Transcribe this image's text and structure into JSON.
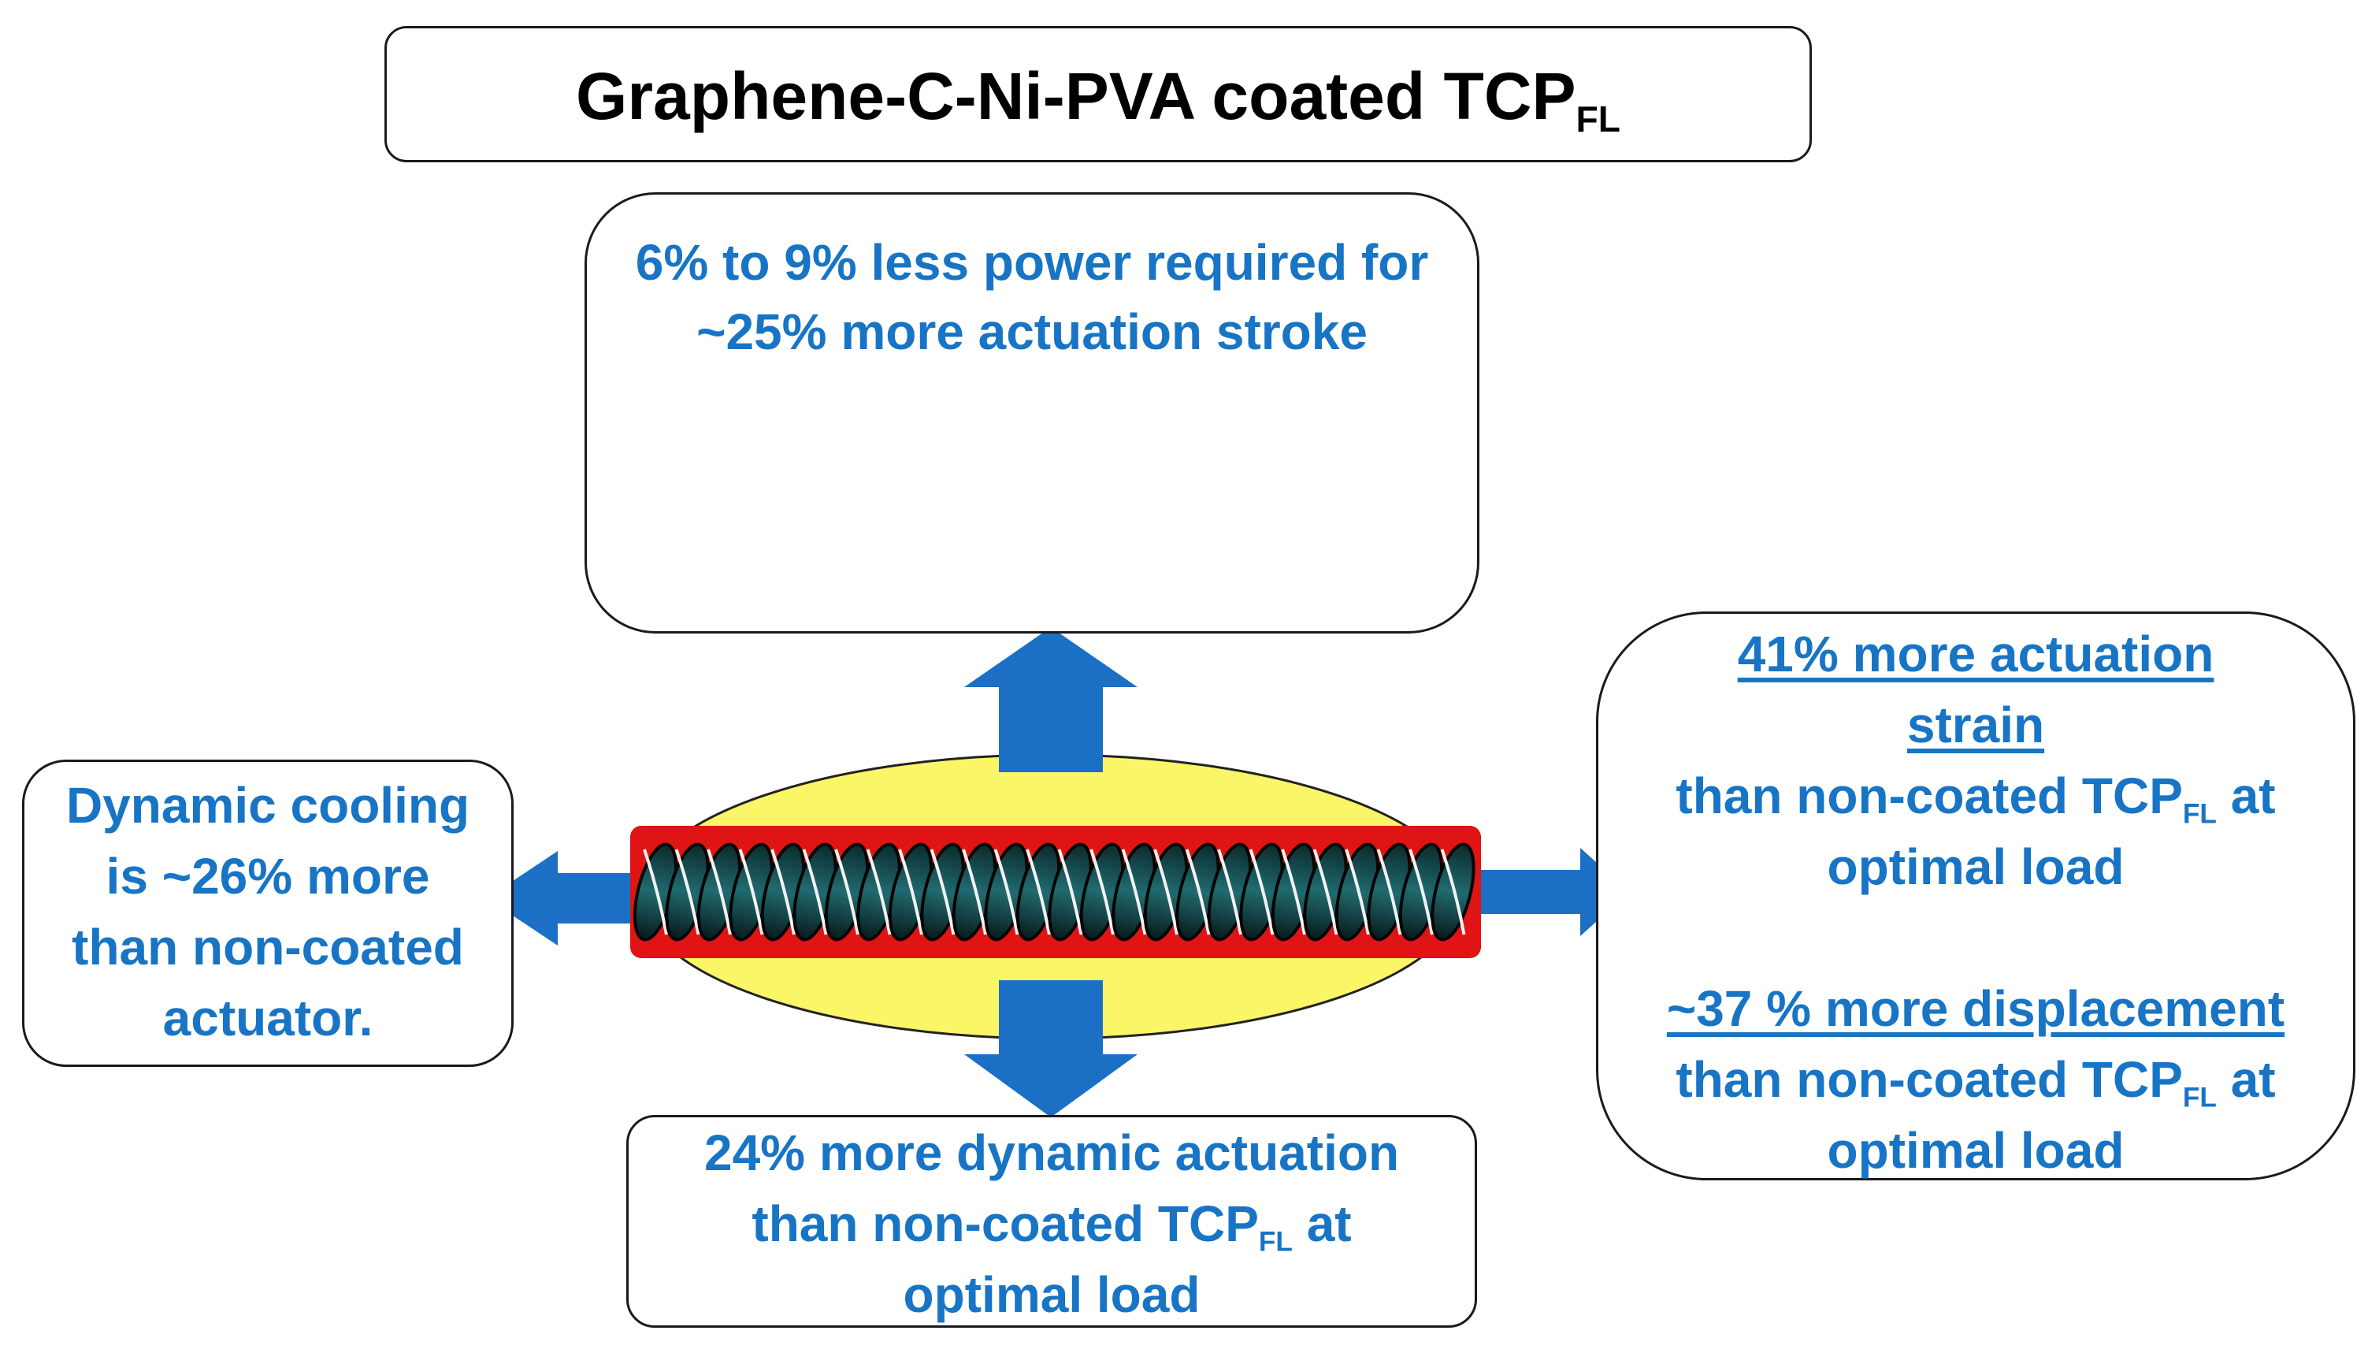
{
  "title": {
    "main": "Graphene-C-Ni-PVA coated TCP",
    "sub": "FL"
  },
  "top_box": {
    "line1": "6% to 9% less power required for",
    "line2": "~25% more actuation stroke",
    "battery_plus": "+",
    "battery_minus": "-"
  },
  "left_box": {
    "line1": "Dynamic cooling",
    "line2": "is ~26% more",
    "line3": "than non-coated",
    "line4": "actuator."
  },
  "bottom_box": {
    "line1": "24% more dynamic actuation",
    "line2_pre": "than non-coated TCP",
    "line2_sub": "FL",
    "line2_post": " at",
    "line3": "optimal load"
  },
  "right_box": {
    "strain_head1": "41% more actuation",
    "strain_head2": "strain",
    "strain_line_pre": "than non-coated TCP",
    "strain_line_sub": "FL",
    "strain_line_post": " at",
    "strain_line3": "optimal load",
    "disp_head": "~37 % more displacement",
    "disp_line_pre": "than non-coated TCP",
    "disp_line_sub": "FL",
    "disp_line_post": " at",
    "disp_line3": "optimal load"
  },
  "colors": {
    "text_blue": "#1874c4",
    "arrow_blue": "#1b6fc5",
    "ellipse_yellow": "#fbf568",
    "coil_red": "#e01414"
  }
}
